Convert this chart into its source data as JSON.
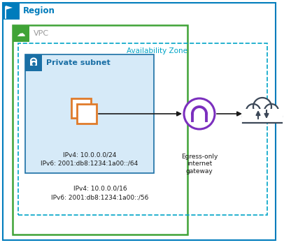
{
  "region_label": "Region",
  "vpc_label": "VPC",
  "az_label": "Availability Zone",
  "private_subnet_label": "Private subnet",
  "ipv4_subnet": "IPv4: 10.0.0.0/24",
  "ipv6_subnet": "IPv6: 2001:db8:1234:1a00::/64",
  "ipv4_vpc": "IPv4: 10.0.0.0/16",
  "ipv6_vpc": "IPv6: 2001:db8:1234:1a00::/56",
  "egress_label": "Egress-only\ninternet\ngateway",
  "region_border_color": "#007CBC",
  "vpc_border_color": "#3FA336",
  "az_border_color": "#00A4C7",
  "private_subnet_fill": "#D6EAF8",
  "private_subnet_border": "#1A6FA5",
  "egress_circle_color": "#7B2FBE",
  "instance_color": "#E07B2A",
  "cloud_color": "#3C4858",
  "arrow_color": "#1A1A1A",
  "bg_color": "#FFFFFF",
  "region_icon_color": "#007CBC",
  "vpc_icon_color": "#3FA336",
  "subnet_icon_color": "#1A6FA5",
  "label_gray": "#999999"
}
